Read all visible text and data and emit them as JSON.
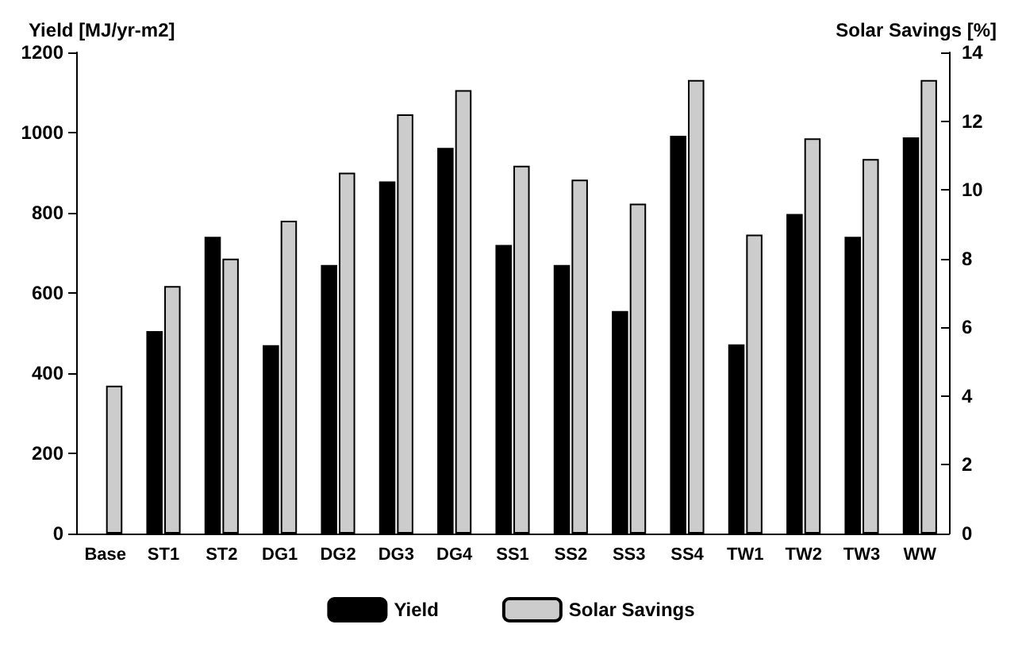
{
  "chart_data": {
    "type": "bar",
    "ylabel": "Yield [MJ/yr-m2]",
    "y2label": "Solar Savings [%]",
    "categories": [
      "Base",
      "ST1",
      "ST2",
      "DG1",
      "DG2",
      "DG3",
      "DG4",
      "SS1",
      "SS2",
      "SS3",
      "SS4",
      "TW1",
      "TW2",
      "TW3",
      "WW"
    ],
    "series": [
      {
        "name": "Yield",
        "color": "#000000",
        "values": [
          null,
          505,
          740,
          470,
          670,
          878,
          962,
          720,
          670,
          555,
          992,
          472,
          797,
          740,
          988
        ]
      },
      {
        "name": "Solar Savings",
        "color": "#cccccc",
        "axis": "y2",
        "values": [
          4.3,
          7.2,
          8.0,
          9.1,
          10.5,
          12.2,
          12.9,
          10.7,
          10.3,
          9.6,
          13.2,
          8.7,
          11.5,
          10.9,
          13.2
        ]
      }
    ],
    "ylim": [
      0,
      1200
    ],
    "yticks": [
      0,
      200,
      400,
      600,
      800,
      1000,
      1200
    ],
    "y2lim": [
      0,
      14
    ],
    "y2ticks": [
      0,
      2,
      4,
      6,
      8,
      10,
      12,
      14
    ],
    "grid": false,
    "legend": "bottom"
  }
}
